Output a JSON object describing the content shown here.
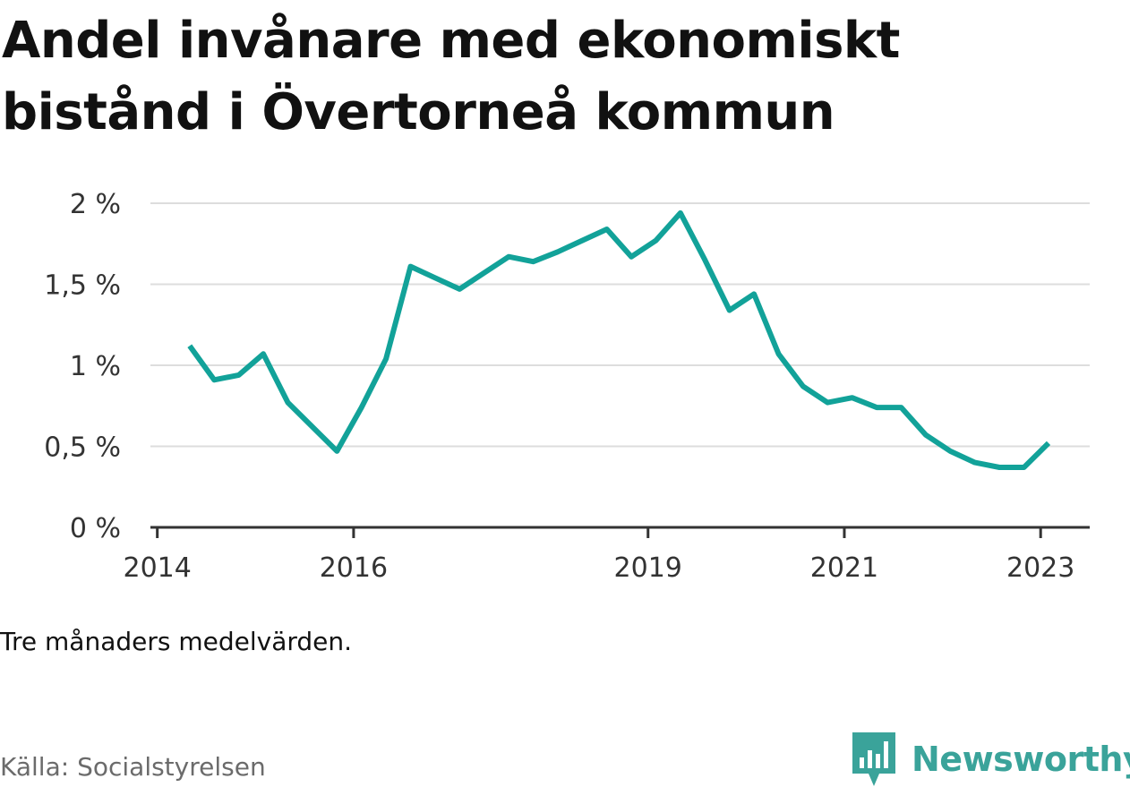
{
  "title": "Andel invånare med ekonomiskt bistånd i Övertorneå kommun",
  "note": "Tre månaders medelvärden.",
  "source": "Källa: Socialstyrelsen",
  "brand": {
    "name": "Newsworthy",
    "icon": "newsworthy-logo-icon"
  },
  "colors": {
    "line": "#12a299",
    "grid": "#dddddd",
    "axis": "#333333",
    "brand": "#3aa39a"
  },
  "chart_data": {
    "type": "line",
    "title": "Andel invånare med ekonomiskt bistånd i Övertorneå kommun",
    "xlabel": "",
    "ylabel": "",
    "ylim": [
      0,
      2
    ],
    "xlim": [
      2013.93,
      2023.5
    ],
    "grid": "horizontal",
    "y_ticks": [
      {
        "value": 0,
        "label": "0 %"
      },
      {
        "value": 0.5,
        "label": "0,5 %"
      },
      {
        "value": 1,
        "label": "1 %"
      },
      {
        "value": 1.5,
        "label": "1,5 %"
      },
      {
        "value": 2,
        "label": "2 %"
      }
    ],
    "x_ticks": [
      {
        "value": 2014.0,
        "label": "2014"
      },
      {
        "value": 2016.0,
        "label": "2016"
      },
      {
        "value": 2019.0,
        "label": "2019"
      },
      {
        "value": 2021.0,
        "label": "2021"
      },
      {
        "value": 2023.0,
        "label": "2023"
      }
    ],
    "series": [
      {
        "x": [
          2014.33,
          2014.58,
          2014.83,
          2015.08,
          2015.33,
          2015.58,
          2015.83,
          2016.08,
          2016.33,
          2016.58,
          2016.83,
          2017.08,
          2017.33,
          2017.58,
          2017.83,
          2018.08,
          2018.33,
          2018.58,
          2018.83,
          2019.08,
          2019.33,
          2019.58,
          2019.83,
          2020.08,
          2020.33,
          2020.58,
          2020.83,
          2021.08,
          2021.33,
          2021.58,
          2021.83,
          2022.08,
          2022.33,
          2022.58,
          2022.83,
          2023.08
        ],
        "values": [
          1.12,
          0.91,
          0.94,
          1.07,
          0.77,
          0.62,
          0.47,
          0.74,
          1.04,
          1.61,
          1.54,
          1.47,
          1.57,
          1.67,
          1.64,
          1.7,
          1.77,
          1.84,
          1.67,
          1.77,
          1.94,
          1.65,
          1.34,
          1.44,
          1.07,
          0.87,
          0.77,
          0.8,
          0.74,
          0.74,
          0.57,
          0.47,
          0.4,
          0.37,
          0.37,
          0.52
        ]
      }
    ]
  }
}
